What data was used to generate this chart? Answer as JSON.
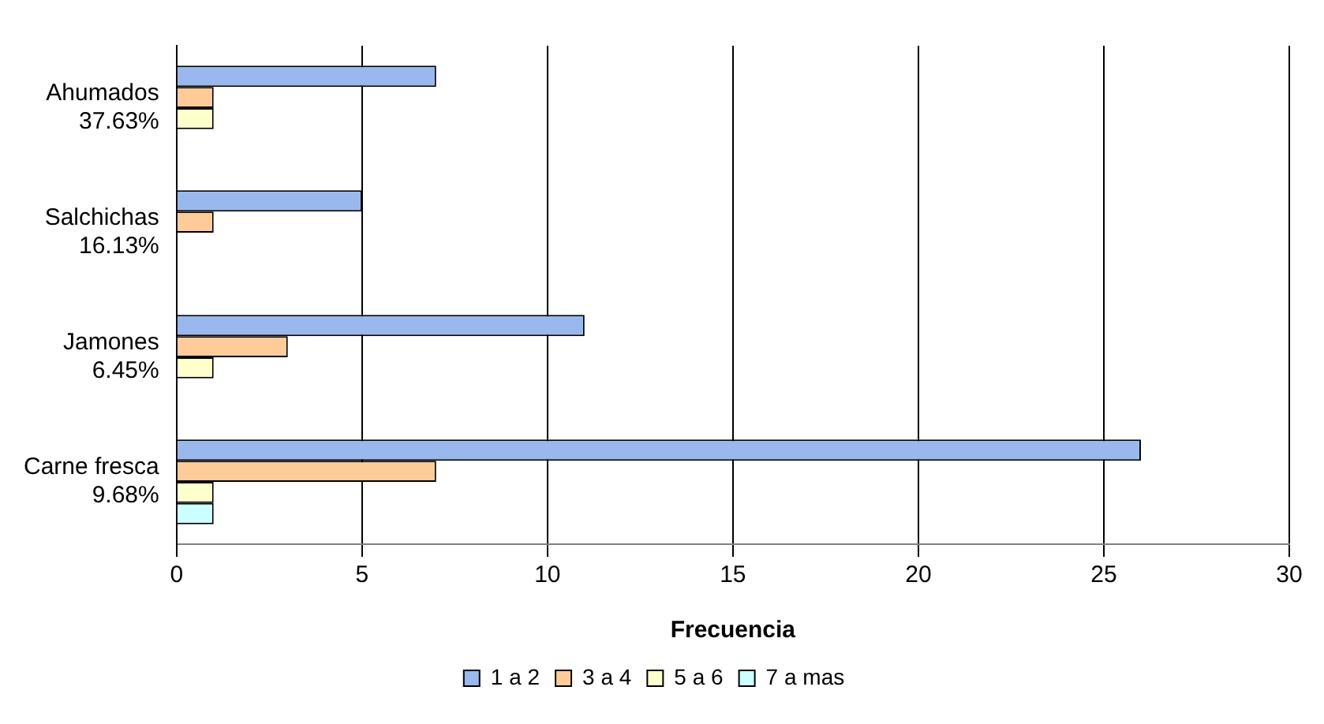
{
  "chart_data": {
    "type": "bar",
    "orientation": "horizontal",
    "xlabel": "Frecuencia",
    "categories": [
      "Ahumados\n37.63%",
      "Salchichas\n16.13%",
      "Jamones\n6.45%",
      "Carne fresca\n9.68%"
    ],
    "series": [
      {
        "name": "1 a 2",
        "color": "#99b8ee",
        "values": [
          7,
          5,
          11,
          26
        ]
      },
      {
        "name": "3 a 4",
        "color": "#ffcc99",
        "values": [
          1,
          1,
          3,
          7
        ]
      },
      {
        "name": "5 a 6",
        "color": "#ffffcc",
        "values": [
          1,
          0,
          1,
          1
        ]
      },
      {
        "name": "7 a mas",
        "color": "#ccffff",
        "values": [
          0,
          0,
          0,
          1
        ]
      }
    ],
    "xlim": [
      0,
      30
    ],
    "xticks": [
      0,
      5,
      10,
      15,
      20,
      25,
      30
    ],
    "grid": "x",
    "legend": "bottom"
  }
}
